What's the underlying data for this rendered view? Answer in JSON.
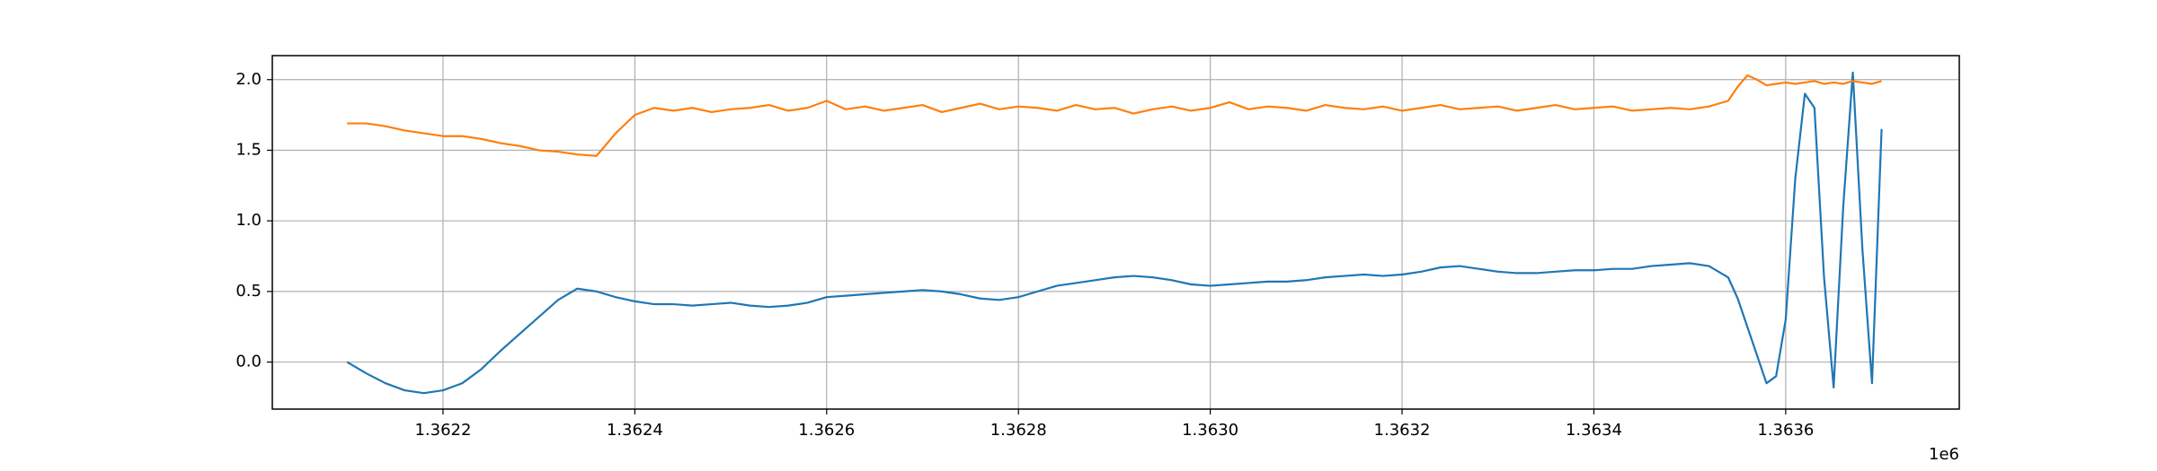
{
  "chart_data": {
    "type": "line",
    "x": [
      1362100,
      1362120,
      1362140,
      1362160,
      1362180,
      1362200,
      1362220,
      1362240,
      1362260,
      1362280,
      1362300,
      1362320,
      1362340,
      1362360,
      1362380,
      1362400,
      1362420,
      1362440,
      1362460,
      1362480,
      1362500,
      1362520,
      1362540,
      1362560,
      1362580,
      1362600,
      1362620,
      1362640,
      1362660,
      1362680,
      1362700,
      1362720,
      1362740,
      1362760,
      1362780,
      1362800,
      1362820,
      1362840,
      1362860,
      1362880,
      1362900,
      1362920,
      1362940,
      1362960,
      1362980,
      1363000,
      1363020,
      1363040,
      1363060,
      1363080,
      1363100,
      1363120,
      1363140,
      1363160,
      1363180,
      1363200,
      1363220,
      1363240,
      1363260,
      1363280,
      1363300,
      1363320,
      1363340,
      1363360,
      1363380,
      1363400,
      1363420,
      1363440,
      1363460,
      1363480,
      1363500,
      1363520,
      1363540,
      1363550,
      1363560,
      1363570,
      1363580,
      1363590,
      1363600,
      1363610,
      1363620,
      1363630,
      1363640,
      1363650,
      1363660,
      1363670,
      1363680,
      1363690,
      1363700
    ],
    "series": [
      {
        "color": "#1f77b4",
        "values": [
          0,
          -0.08,
          -0.15,
          -0.2,
          -0.22,
          -0.2,
          -0.15,
          -0.05,
          0.08,
          0.2,
          0.32,
          0.44,
          0.52,
          0.5,
          0.46,
          0.43,
          0.41,
          0.41,
          0.4,
          0.41,
          0.42,
          0.4,
          0.39,
          0.4,
          0.42,
          0.46,
          0.47,
          0.48,
          0.49,
          0.5,
          0.51,
          0.5,
          0.48,
          0.45,
          0.44,
          0.46,
          0.5,
          0.54,
          0.56,
          0.58,
          0.6,
          0.61,
          0.6,
          0.58,
          0.55,
          0.54,
          0.55,
          0.56,
          0.57,
          0.57,
          0.58,
          0.6,
          0.61,
          0.62,
          0.61,
          0.62,
          0.64,
          0.67,
          0.68,
          0.66,
          0.64,
          0.63,
          0.63,
          0.64,
          0.65,
          0.65,
          0.66,
          0.66,
          0.68,
          0.69,
          0.7,
          0.68,
          0.6,
          0.45,
          0.25,
          0.05,
          -0.15,
          -0.1,
          0.3,
          1.3,
          1.9,
          1.8,
          0.6,
          -0.18,
          1.1,
          2.05,
          0.8,
          -0.15,
          1.65
        ]
      },
      {
        "color": "#ff7f0e",
        "values": [
          1.69,
          1.69,
          1.67,
          1.64,
          1.62,
          1.6,
          1.6,
          1.58,
          1.55,
          1.53,
          1.5,
          1.49,
          1.47,
          1.46,
          1.62,
          1.75,
          1.8,
          1.78,
          1.8,
          1.77,
          1.79,
          1.8,
          1.82,
          1.78,
          1.8,
          1.85,
          1.79,
          1.81,
          1.78,
          1.8,
          1.82,
          1.77,
          1.8,
          1.83,
          1.79,
          1.81,
          1.8,
          1.78,
          1.82,
          1.79,
          1.8,
          1.76,
          1.79,
          1.81,
          1.78,
          1.8,
          1.84,
          1.79,
          1.81,
          1.8,
          1.78,
          1.82,
          1.8,
          1.79,
          1.81,
          1.78,
          1.8,
          1.82,
          1.79,
          1.8,
          1.81,
          1.78,
          1.8,
          1.82,
          1.79,
          1.8,
          1.81,
          1.78,
          1.79,
          1.8,
          1.79,
          1.81,
          1.85,
          1.95,
          2.03,
          2.0,
          1.96,
          1.97,
          1.98,
          1.97,
          1.98,
          1.99,
          1.97,
          1.98,
          1.97,
          1.99,
          1.98,
          1.97,
          1.99
        ]
      }
    ],
    "xlim": [
      1362022,
      1363781
    ],
    "ylim": [
      -0.333,
      2.17
    ],
    "xticks": [
      {
        "value": 1362200,
        "label": "1.3622"
      },
      {
        "value": 1362400,
        "label": "1.3624"
      },
      {
        "value": 1362600,
        "label": "1.3626"
      },
      {
        "value": 1362800,
        "label": "1.3628"
      },
      {
        "value": 1363000,
        "label": "1.3630"
      },
      {
        "value": 1363200,
        "label": "1.3632"
      },
      {
        "value": 1363400,
        "label": "1.3634"
      },
      {
        "value": 1363600,
        "label": "1.3636"
      }
    ],
    "yticks": [
      {
        "value": 0,
        "label": "0.0"
      },
      0.5,
      {
        "value": 1,
        "label": "1.0"
      },
      1.5,
      {
        "value": 2,
        "label": "2.0"
      }
    ],
    "x_offset_label": "1e6",
    "grid": true
  }
}
